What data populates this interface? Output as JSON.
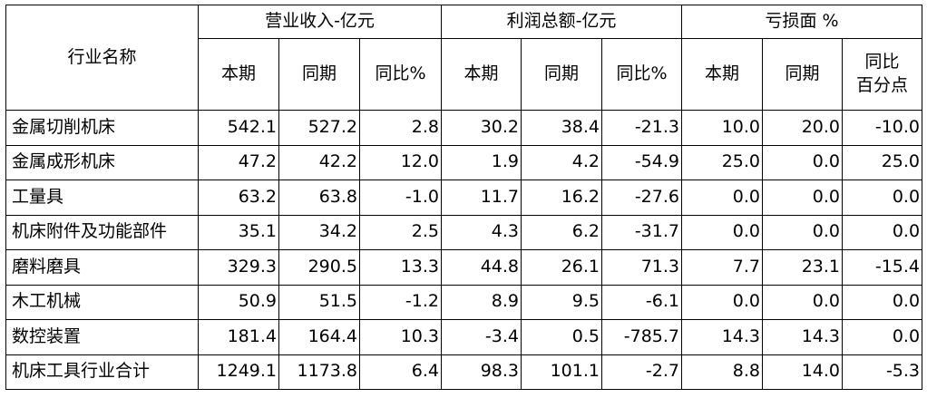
{
  "table": {
    "header": {
      "row_label": "行业名称",
      "groups": [
        {
          "label": "营业收入-亿元",
          "columns": [
            "本期",
            "同期",
            "同比%"
          ]
        },
        {
          "label": "利润总额-亿元",
          "columns": [
            "本期",
            "同期",
            "同比%"
          ]
        },
        {
          "label": "亏损面 %",
          "columns": [
            "本期",
            "同期",
            "同比\n百分点"
          ]
        }
      ]
    },
    "rows": [
      {
        "name": "金属切削机床",
        "values": [
          "542.1",
          "527.2",
          "2.8",
          "30.2",
          "38.4",
          "-21.3",
          "10.0",
          "20.0",
          "-10.0"
        ]
      },
      {
        "name": "金属成形机床",
        "values": [
          "47.2",
          "42.2",
          "12.0",
          "1.9",
          "4.2",
          "-54.9",
          "25.0",
          "0.0",
          "25.0"
        ]
      },
      {
        "name": "工量具",
        "values": [
          "63.2",
          "63.8",
          "-1.0",
          "11.7",
          "16.2",
          "-27.6",
          "0.0",
          "0.0",
          "0.0"
        ]
      },
      {
        "name": "机床附件及功能部件",
        "values": [
          "35.1",
          "34.2",
          "2.5",
          "4.3",
          "6.2",
          "-31.7",
          "0.0",
          "0.0",
          "0.0"
        ]
      },
      {
        "name": "磨料磨具",
        "values": [
          "329.3",
          "290.5",
          "13.3",
          "44.8",
          "26.1",
          "71.3",
          "7.7",
          "23.1",
          "-15.4"
        ]
      },
      {
        "name": "木工机械",
        "values": [
          "50.9",
          "51.5",
          "-1.2",
          "8.9",
          "9.5",
          "-6.1",
          "0.0",
          "0.0",
          "0.0"
        ]
      },
      {
        "name": "数控装置",
        "values": [
          "181.4",
          "164.4",
          "10.3",
          "-3.4",
          "0.5",
          "-785.7",
          "14.3",
          "14.3",
          "0.0"
        ]
      },
      {
        "name": "机床工具行业合计",
        "values": [
          "1249.1",
          "1173.8",
          "6.4",
          "98.3",
          "101.1",
          "-2.7",
          "8.8",
          "14.0",
          "-5.3"
        ]
      }
    ]
  }
}
